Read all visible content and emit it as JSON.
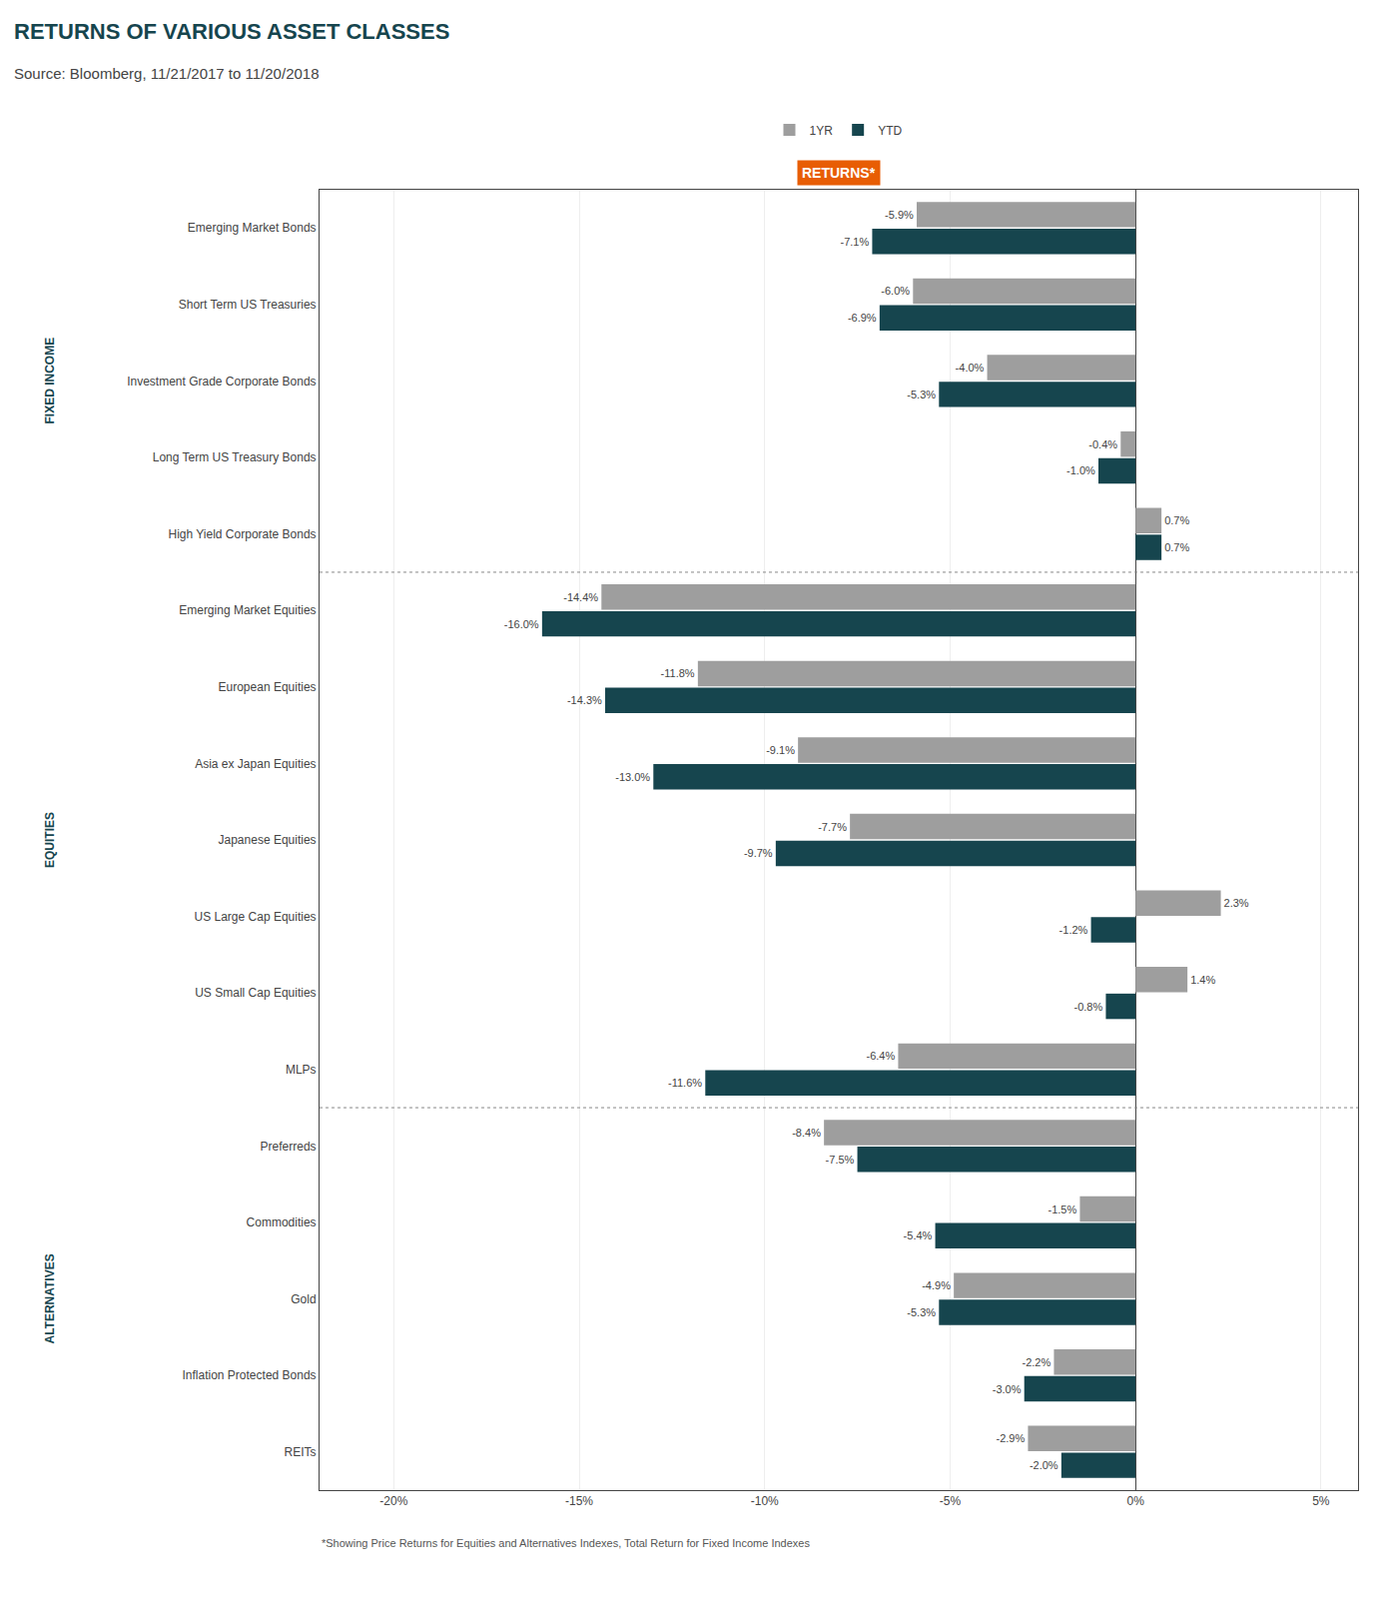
{
  "chart_data": {
    "type": "bar",
    "orientation": "horizontal",
    "title": "RETURNS OF VARIOUS ASSET CLASSES",
    "subtitle": "Source: Bloomberg, 11/21/2017 to 11/20/2018",
    "categories": [
      "Emerging Market Bonds",
      "Short Term US Treasuries",
      "Investment Grade Corporate Bonds",
      "Long Term US Treasury Bonds",
      "High Yield Corporate Bonds",
      "Emerging Market Equities",
      "European Equities",
      "Asia ex Japan Equities",
      "Japanese Equities",
      "US Large Cap Equities",
      "US Small Cap Equities",
      "MLPs",
      "Preferreds",
      "Commodities",
      "Gold",
      "Inflation Protected Bonds",
      "REITs"
    ],
    "series": [
      {
        "name": "1YR",
        "color": "#9e9e9e",
        "values": [
          -5.9,
          -6.0,
          -4.0,
          -0.4,
          0.7,
          -14.4,
          -11.8,
          -9.1,
          -7.7,
          2.3,
          1.4,
          -6.4,
          -8.4,
          -1.5,
          -4.9,
          -2.2,
          -2.9
        ],
        "value_labels": [
          "-5.9%",
          "-6.0%",
          "-4.0%",
          "-0.4%",
          "0.7%",
          "-14.4%",
          "-11.8%",
          "-9.1%",
          "-7.7%",
          "2.3%",
          "1.4%",
          "-6.4%",
          "-8.4%",
          "-1.5%",
          "-4.9%",
          "-2.2%",
          "-2.9%"
        ]
      },
      {
        "name": "YTD",
        "color": "#16454e",
        "values": [
          -7.1,
          -6.9,
          -5.3,
          -1.0,
          0.7,
          -16.0,
          -14.3,
          -13.0,
          -9.7,
          -1.2,
          -0.8,
          -11.6,
          -7.5,
          -5.4,
          -5.3,
          -3.0,
          -2.0
        ],
        "value_labels": [
          "-7.1%",
          "-6.9%",
          "-5.3%",
          "-1.0%",
          "0.7%",
          "-16.0%",
          "-14.3%",
          "-13.0%",
          "-9.7%",
          "-1.2%",
          "-0.8%",
          "-11.6%",
          "-7.5%",
          "-5.4%",
          "-5.3%",
          "-3.0%",
          "-2.0%"
        ]
      }
    ],
    "xlim": [
      -22,
      6
    ],
    "xticks": [
      {
        "value": -20,
        "label": "-20%"
      },
      {
        "value": -15,
        "label": "-15%"
      },
      {
        "value": -10,
        "label": "-10%"
      },
      {
        "value": -5,
        "label": "-5%"
      },
      {
        "value": 0,
        "label": "0%"
      },
      {
        "value": 5,
        "label": "5%"
      }
    ],
    "grid": true,
    "legend": "top",
    "data_labels": true,
    "annotations": [
      {
        "text": "RETURNS*"
      },
      {
        "text": "FIXED INCOME",
        "categories": [
          "Emerging Market Bonds",
          "High Yield Corporate Bonds"
        ]
      },
      {
        "text": "EQUITIES",
        "categories": [
          "Emerging Market Equities",
          "MLPs"
        ]
      },
      {
        "text": "ALTERNATIVES",
        "categories": [
          "Preferreds",
          "REITs"
        ]
      },
      {
        "text": "*Showing Price Returns for Equities and Alternatives Indexes, Total Return for Fixed Income Indexes"
      }
    ]
  }
}
